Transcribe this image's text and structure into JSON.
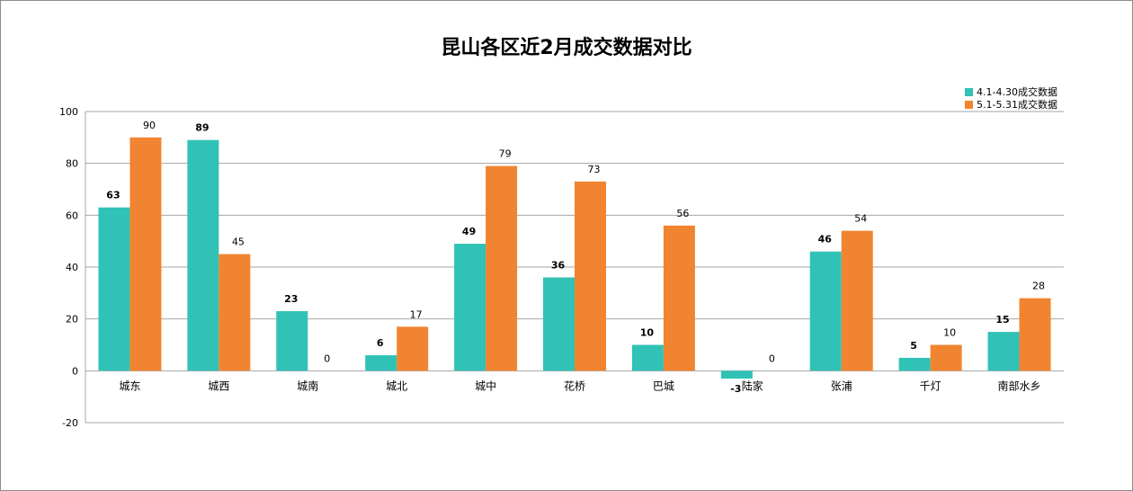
{
  "chart_data": {
    "type": "bar",
    "title": "昆山各区近2月成交数据对比",
    "categories": [
      "城东",
      "城西",
      "城南",
      "城北",
      "城中",
      "花桥",
      "巴城",
      "陆家",
      "张浦",
      "千灯",
      "南部水乡"
    ],
    "series": [
      {
        "name": "4.1-4.30成交数据",
        "color": "#30c2b6",
        "values": [
          63,
          89,
          23,
          6,
          49,
          36,
          10,
          -3,
          46,
          5,
          15
        ]
      },
      {
        "name": "5.1-5.31成交数据",
        "color": "#f18430",
        "values": [
          90,
          45,
          0,
          17,
          79,
          73,
          56,
          0,
          54,
          10,
          28
        ]
      }
    ],
    "ylim": [
      -20,
      100
    ],
    "yticks": [
      -20,
      0,
      20,
      40,
      60,
      80,
      100
    ],
    "grid": true,
    "legend": "top-right",
    "xlabel": "",
    "ylabel": ""
  }
}
